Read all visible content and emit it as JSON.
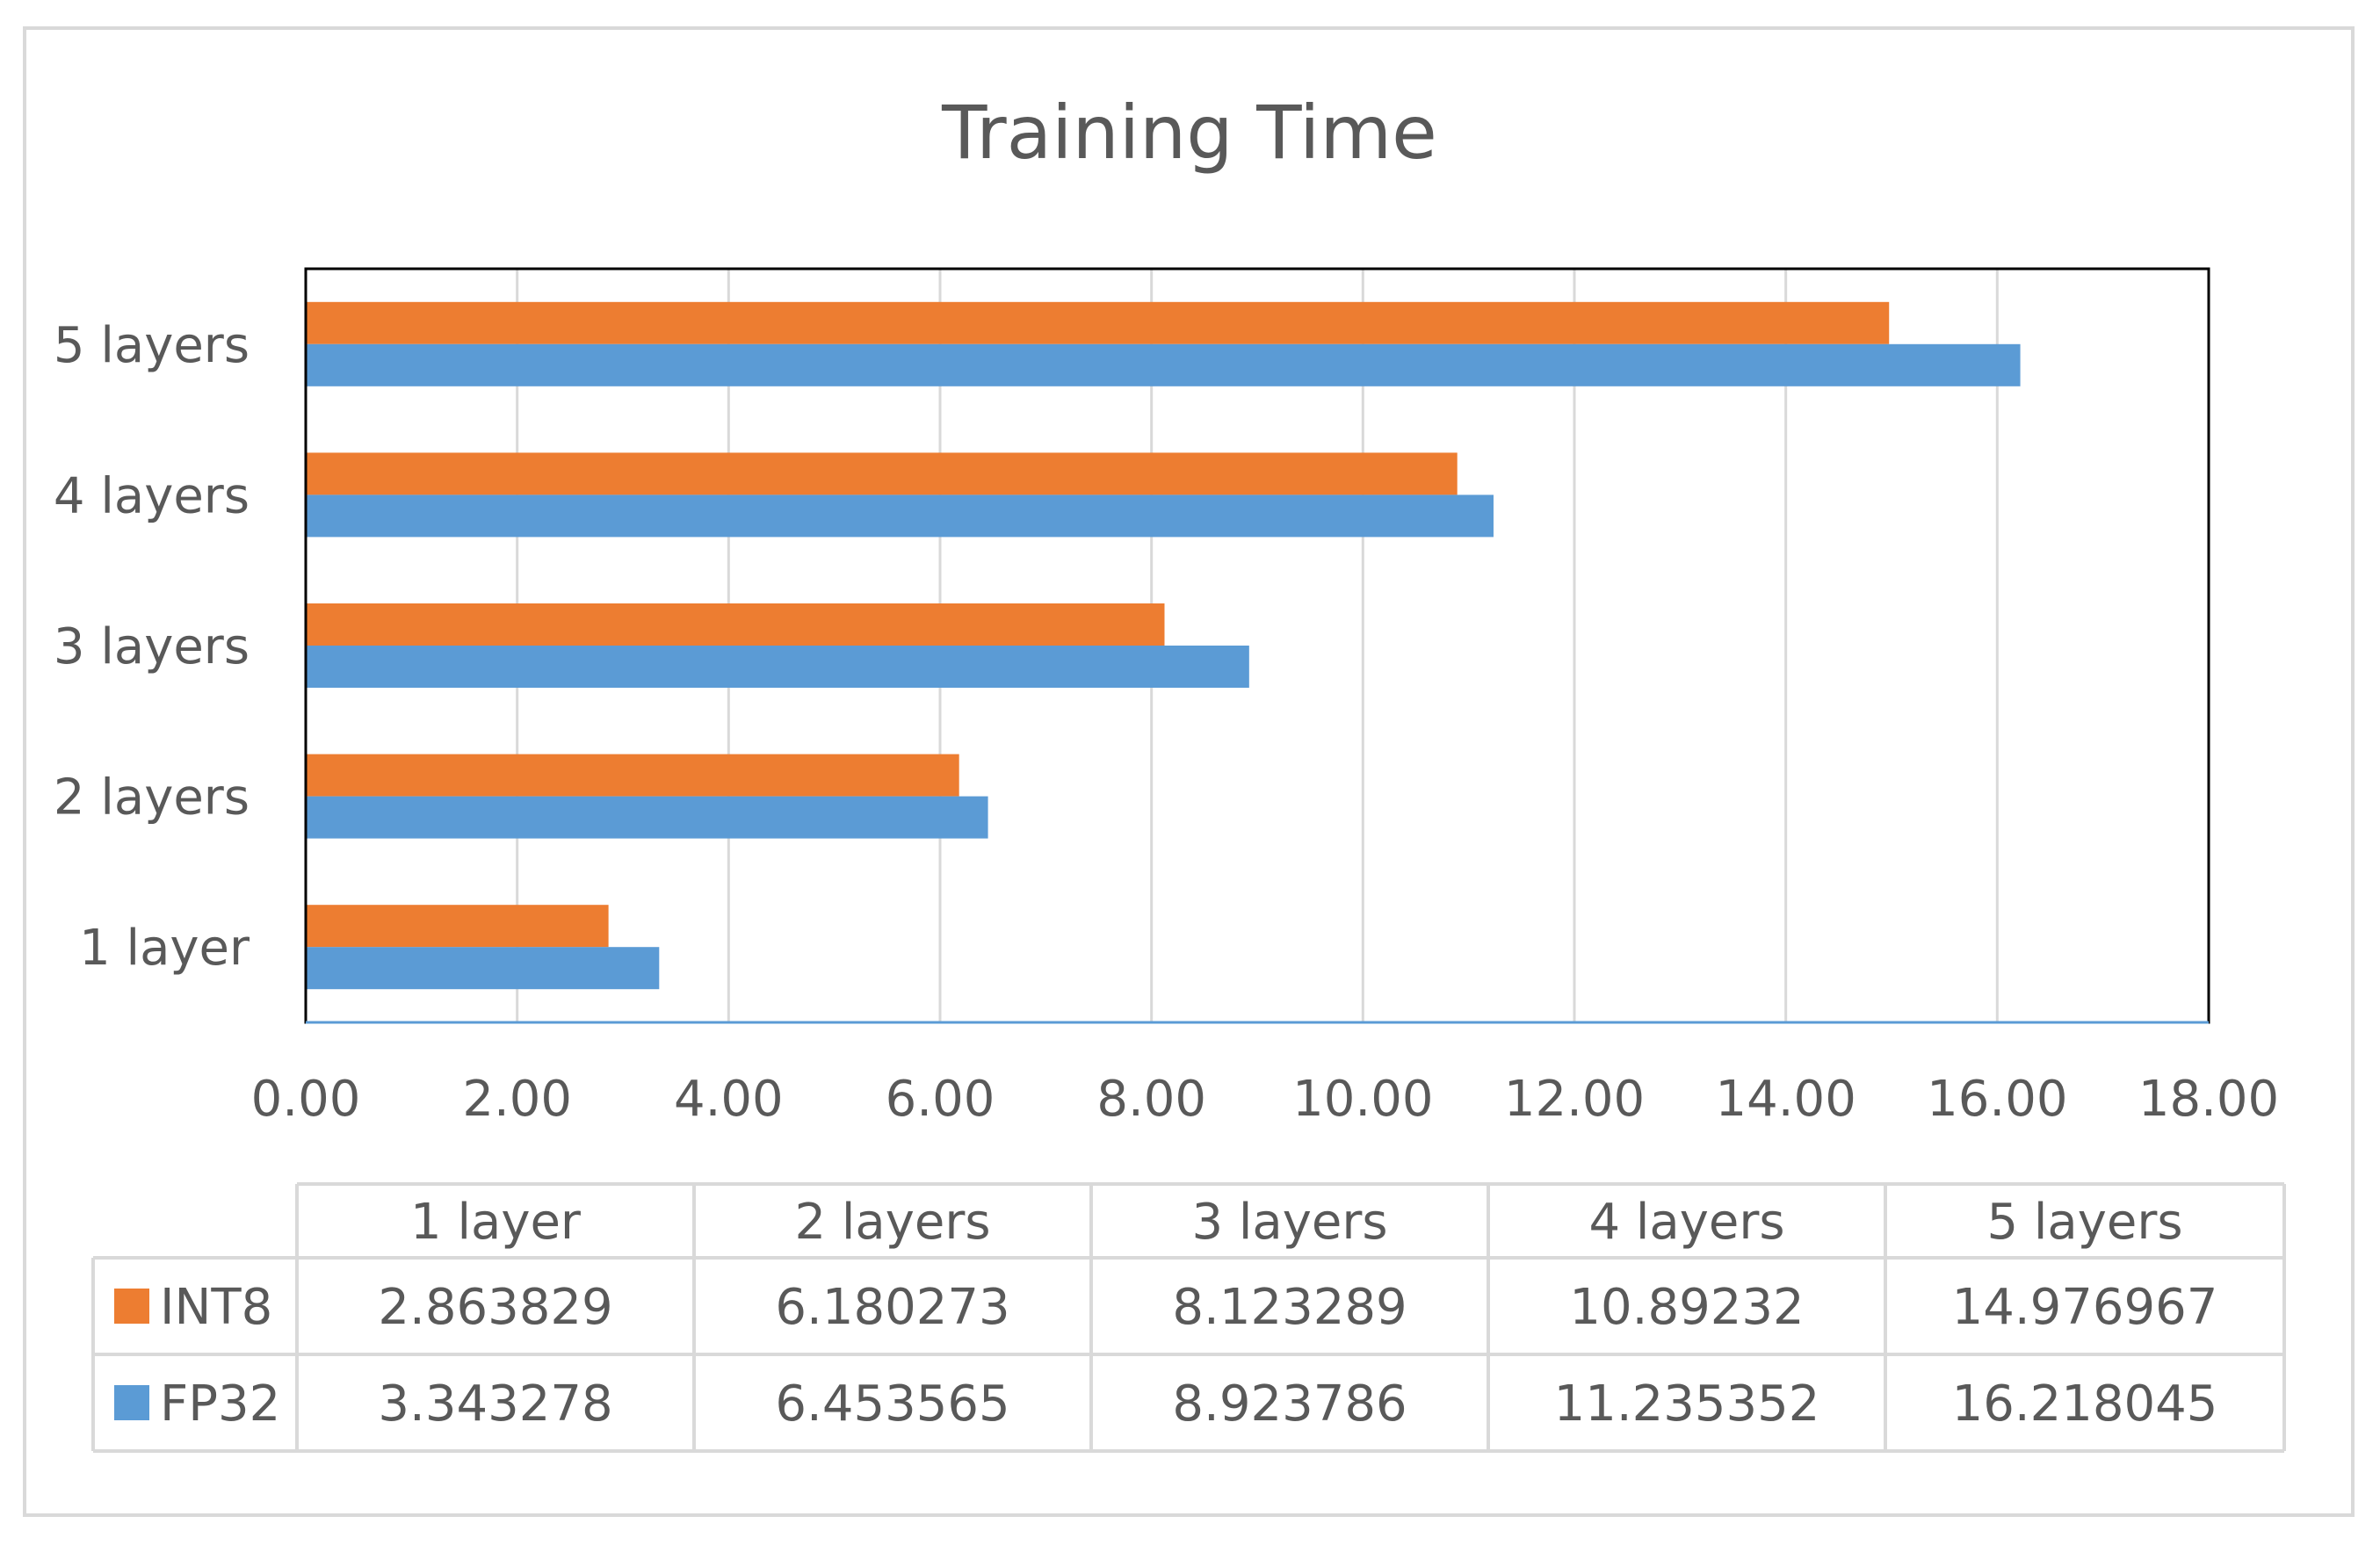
{
  "chart_data": {
    "type": "bar",
    "orientation": "horizontal",
    "title": "Training Time",
    "categories": [
      "1 layer",
      "2 layers",
      "3 layers",
      "4 layers",
      "5 layers"
    ],
    "series": [
      {
        "name": "INT8",
        "color": "#ed7d31",
        "values": [
          2.863829,
          6.180273,
          8.123289,
          10.89232,
          14.976967
        ],
        "table_values": [
          "2.863829",
          "6.180273",
          "8.123289",
          "10.89232",
          "14.976967"
        ]
      },
      {
        "name": "FP32",
        "color": "#5b9bd5",
        "values": [
          3.343278,
          6.453565,
          8.923786,
          11.235352,
          16.218045
        ],
        "table_values": [
          "3.343278",
          "6.453565",
          "8.923786",
          "11.235352",
          "16.218045"
        ]
      }
    ],
    "xlim": [
      0,
      18
    ],
    "x_ticks": [
      "0.00",
      "2.00",
      "4.00",
      "6.00",
      "8.00",
      "10.00",
      "12.00",
      "14.00",
      "16.00",
      "18.00"
    ],
    "grid": true,
    "legend": "data table",
    "data_table": true
  }
}
